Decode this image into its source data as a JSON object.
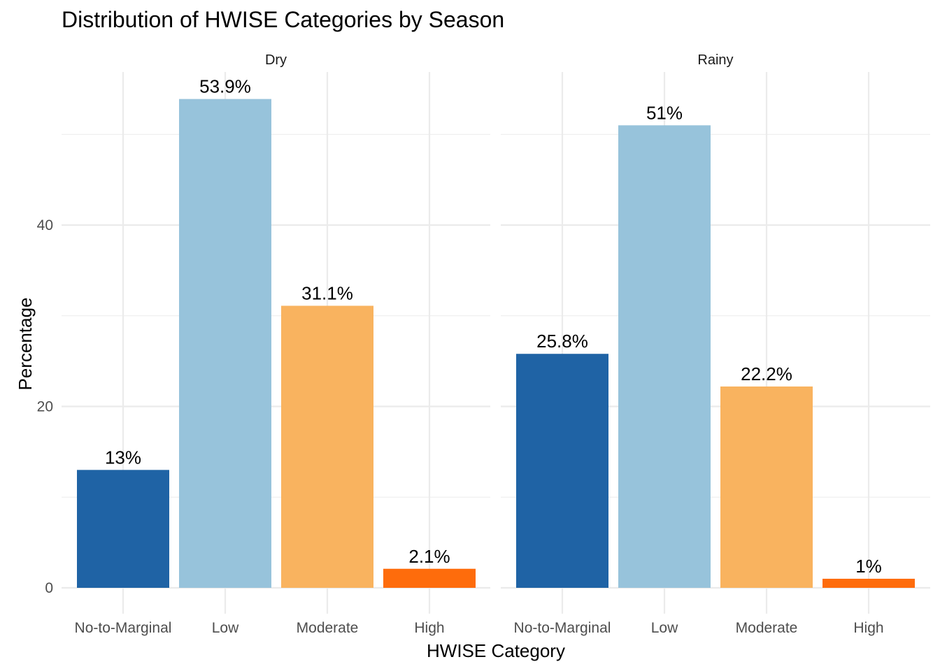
{
  "chart_data": {
    "type": "bar",
    "title": "Distribution of HWISE Categories by Season",
    "xlabel": "HWISE Category",
    "ylabel": "Percentage",
    "ylim": [
      0,
      56
    ],
    "yticks": [
      0,
      20,
      40
    ],
    "grid": true,
    "legend": "none",
    "categories": [
      "No-to-Marginal",
      "Low",
      "Moderate",
      "High"
    ],
    "colors": [
      "#1f63a5",
      "#97c3db",
      "#f9b35f",
      "#fe6c0c"
    ],
    "facets": [
      {
        "name": "Dry",
        "values": [
          13.0,
          53.9,
          31.1,
          2.1
        ],
        "labels": [
          "13%",
          "53.9%",
          "31.1%",
          "2.1%"
        ]
      },
      {
        "name": "Rainy",
        "values": [
          25.8,
          51.0,
          22.2,
          1.0
        ],
        "labels": [
          "25.8%",
          "51%",
          "22.2%",
          "1%"
        ]
      }
    ]
  }
}
